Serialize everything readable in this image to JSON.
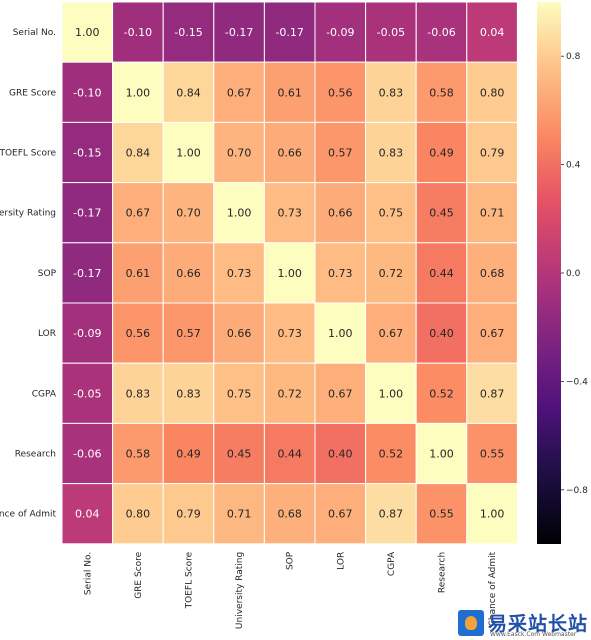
{
  "chart_data": {
    "type": "heatmap",
    "title": "",
    "row_labels": [
      "Serial No.",
      "GRE Score",
      "TOEFL Score",
      "University Rating",
      "SOP",
      "LOR",
      "CGPA",
      "Research",
      "Chance of Admit"
    ],
    "col_labels": [
      "Serial No.",
      "GRE Score",
      "TOEFL Score",
      "University Rating",
      "SOP",
      "LOR",
      "CGPA",
      "Research",
      "Chance of Admit"
    ],
    "values": [
      [
        1.0,
        -0.1,
        -0.15,
        -0.17,
        -0.17,
        -0.09,
        -0.05,
        -0.06,
        0.04
      ],
      [
        -0.1,
        1.0,
        0.84,
        0.67,
        0.61,
        0.56,
        0.83,
        0.58,
        0.8
      ],
      [
        -0.15,
        0.84,
        1.0,
        0.7,
        0.66,
        0.57,
        0.83,
        0.49,
        0.79
      ],
      [
        -0.17,
        0.67,
        0.7,
        1.0,
        0.73,
        0.66,
        0.75,
        0.45,
        0.71
      ],
      [
        -0.17,
        0.61,
        0.66,
        0.73,
        1.0,
        0.73,
        0.72,
        0.44,
        0.68
      ],
      [
        -0.09,
        0.56,
        0.57,
        0.66,
        0.73,
        1.0,
        0.67,
        0.4,
        0.67
      ],
      [
        -0.05,
        0.83,
        0.83,
        0.75,
        0.72,
        0.67,
        1.0,
        0.52,
        0.87
      ],
      [
        -0.06,
        0.58,
        0.49,
        0.45,
        0.44,
        0.4,
        0.52,
        1.0,
        0.55
      ],
      [
        0.04,
        0.8,
        0.79,
        0.71,
        0.68,
        0.67,
        0.87,
        0.55,
        1.0
      ]
    ],
    "annotation_format": "0.00",
    "colormap": "magma",
    "vmin": -1.0,
    "vmax": 1.0,
    "colorbar": {
      "ticks": [
        0.8,
        0.4,
        0.0,
        -0.4,
        -0.8
      ],
      "tick_labels": [
        "0.8",
        "0.4",
        "0.0",
        "−0.4",
        "−0.8"
      ],
      "position": "right"
    },
    "grid": true
  },
  "watermark": {
    "title": "易采站长站",
    "subtitle": "Www.Easck.Com Webmaster"
  }
}
